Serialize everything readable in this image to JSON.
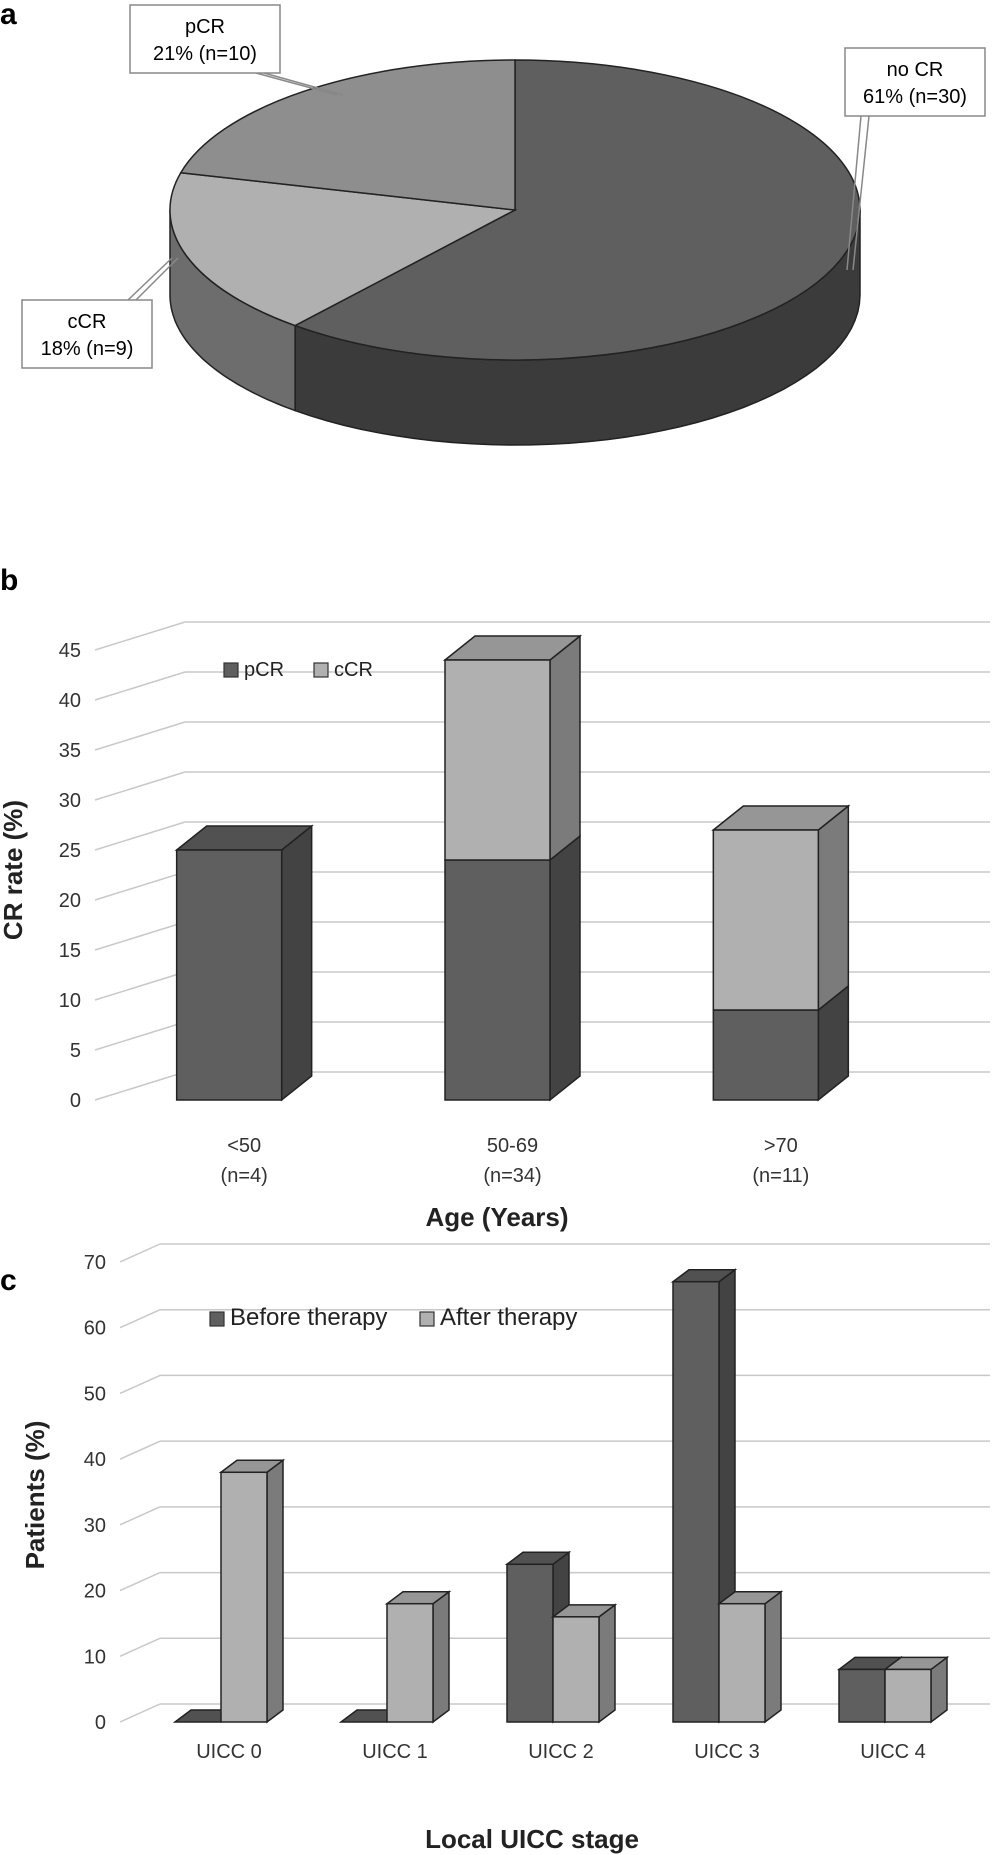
{
  "panels": {
    "a": "a",
    "b": "b",
    "c": "c"
  },
  "chart_data": [
    {
      "type": "pie",
      "panel": "a",
      "slices": [
        {
          "name": "no CR",
          "value": 61,
          "label_line1": "no CR",
          "label_line2": "61% (n=30)"
        },
        {
          "name": "cCR",
          "value": 18,
          "label_line1": "cCR",
          "label_line2": "18% (n=9)"
        },
        {
          "name": "pCR",
          "value": 21,
          "label_line1": "pCR",
          "label_line2": "21% (n=10)"
        }
      ],
      "colors": {
        "no CR": "#5f5f5f",
        "cCR": "#b0b0b0",
        "pCR": "#8e8e8e"
      },
      "style": "3d"
    },
    {
      "type": "bar",
      "panel": "b",
      "stacked": true,
      "style": "3d",
      "categories": [
        "<50",
        "50-69",
        ">70"
      ],
      "category_sublabels": [
        "(n=4)",
        "(n=34)",
        "(n=11)"
      ],
      "series": [
        {
          "name": "pCR",
          "values": [
            25,
            24,
            9
          ],
          "color": "#5f5f5f"
        },
        {
          "name": "cCR",
          "values": [
            0,
            20,
            18
          ],
          "color": "#b0b0b0"
        }
      ],
      "xlabel": "Age (Years)",
      "ylabel": "CR rate (%)",
      "ylim": [
        0,
        45
      ],
      "yticks": [
        0,
        5,
        10,
        15,
        20,
        25,
        30,
        35,
        40,
        45
      ],
      "grid": true,
      "legend_position": "top-left"
    },
    {
      "type": "bar",
      "panel": "c",
      "stacked": false,
      "style": "3d",
      "categories": [
        "UICC 0",
        "UICC 1",
        "UICC 2",
        "UICC 3",
        "UICC 4"
      ],
      "series": [
        {
          "name": "Before therapy",
          "values": [
            0,
            0,
            24,
            67,
            8
          ],
          "color": "#5f5f5f"
        },
        {
          "name": "After therapy",
          "values": [
            38,
            18,
            16,
            18,
            8
          ],
          "color": "#b0b0b0"
        }
      ],
      "xlabel": "Local UICC stage",
      "ylabel": "Patients (%)",
      "ylim": [
        0,
        70
      ],
      "yticks": [
        0,
        10,
        20,
        30,
        40,
        50,
        60,
        70
      ],
      "grid": true,
      "legend_position": "top-left"
    }
  ]
}
